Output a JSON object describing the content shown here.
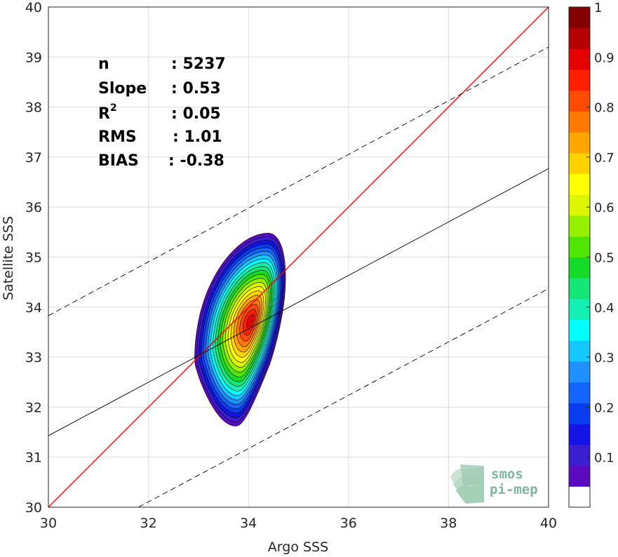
{
  "chart_data": {
    "type": "contour",
    "xlabel": "Argo SSS",
    "ylabel": "Satellite SSS",
    "xlim": [
      30,
      40
    ],
    "ylim": [
      30,
      40
    ],
    "xticks": [
      "30",
      "32",
      "34",
      "36",
      "38",
      "40"
    ],
    "yticks": [
      "30",
      "31",
      "32",
      "33",
      "34",
      "35",
      "36",
      "37",
      "38",
      "39",
      "40"
    ],
    "grid": true,
    "reference_lines": [
      {
        "kind": "one_to_one",
        "color": "#ff0000",
        "style": "solid",
        "x": [
          30,
          40
        ],
        "y": [
          30,
          40
        ]
      },
      {
        "kind": "regression",
        "color": "#000000",
        "style": "solid",
        "x": [
          30,
          40
        ],
        "y": [
          31.43,
          36.77
        ]
      },
      {
        "kind": "regression_upper",
        "color": "#000000",
        "style": "dashed",
        "x": [
          30,
          40
        ],
        "y": [
          33.83,
          39.2
        ]
      },
      {
        "kind": "regression_lower",
        "color": "#000000",
        "style": "dashed",
        "x": [
          31.8,
          40
        ],
        "y": [
          30.0,
          34.37
        ]
      }
    ],
    "density": {
      "center": [
        34.05,
        33.72
      ],
      "max_level": 1,
      "x_extent": [
        33.0,
        34.65
      ],
      "y_extent": [
        31.62,
        35.48
      ]
    },
    "stats": [
      {
        "label": "n",
        "value": ": 5237"
      },
      {
        "label": "Slope",
        "value": ": 0.53"
      },
      {
        "label": "R",
        "sup": "2",
        "value": ": 0.05"
      },
      {
        "label": "RMS",
        "value": ": 1.01"
      },
      {
        "label": "BIAS",
        "value": ": -0.38"
      }
    ],
    "colorbar": {
      "range": [
        0,
        1
      ],
      "ticks": [
        "0.1",
        "0.2",
        "0.3",
        "0.4",
        "0.5",
        "0.6",
        "0.7",
        "0.8",
        "0.9",
        "1"
      ],
      "colors": [
        "#ffffff",
        "#5a0bbf",
        "#3a1fd1",
        "#1414e6",
        "#0a3cf0",
        "#1464ff",
        "#1e90ff",
        "#14c8ff",
        "#00ffff",
        "#14f0b4",
        "#14e678",
        "#14dc28",
        "#50e600",
        "#96f000",
        "#dcf500",
        "#ffff00",
        "#ffd200",
        "#ffa500",
        "#ff7800",
        "#ff4b00",
        "#ff1e00",
        "#e60000",
        "#b40000",
        "#820000"
      ]
    }
  },
  "logo": {
    "line1": "smos",
    "line2": "pi-mep"
  }
}
